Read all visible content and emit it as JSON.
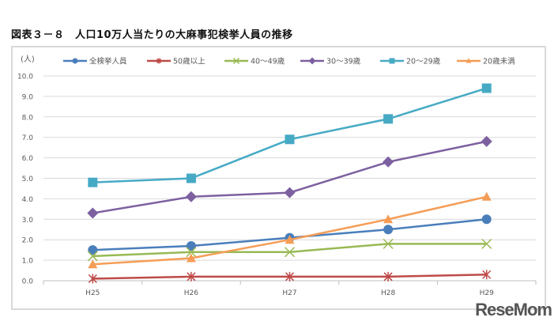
{
  "chart_data": {
    "type": "line",
    "title": "図表３－８　人口10万人当たりの大麻事犯検挙人員の推移",
    "ylabel": "(人)",
    "categories": [
      "H25",
      "H26",
      "H27",
      "H28",
      "H29"
    ],
    "ylim": [
      0,
      10
    ],
    "yticks": [
      "0.0",
      "1.0",
      "2.0",
      "3.0",
      "4.0",
      "5.0",
      "6.0",
      "7.0",
      "8.0",
      "9.0",
      "10.0"
    ],
    "grid": true,
    "legend": "top",
    "series": [
      {
        "name": "全検挙人員",
        "color": "#4a7ebb",
        "marker": "circle",
        "values": [
          1.5,
          1.7,
          2.1,
          2.5,
          3.0
        ]
      },
      {
        "name": "50歳以上",
        "color": "#be4b48",
        "marker": "star",
        "values": [
          0.1,
          0.2,
          0.2,
          0.2,
          0.3
        ]
      },
      {
        "name": "40～49歳",
        "color": "#98b954",
        "marker": "x",
        "values": [
          1.2,
          1.4,
          1.4,
          1.8,
          1.8
        ]
      },
      {
        "name": "30～39歳",
        "color": "#7d60a0",
        "marker": "diamond",
        "values": [
          3.3,
          4.1,
          4.3,
          5.8,
          6.8
        ]
      },
      {
        "name": "20～29歳",
        "color": "#46aac5",
        "marker": "square",
        "values": [
          4.8,
          5.0,
          6.9,
          7.9,
          9.4
        ]
      },
      {
        "name": "20歳未満",
        "color": "#f59d56",
        "marker": "triangle",
        "values": [
          0.8,
          1.1,
          2.0,
          3.0,
          4.1
        ]
      }
    ]
  },
  "watermark": "ReseMom"
}
